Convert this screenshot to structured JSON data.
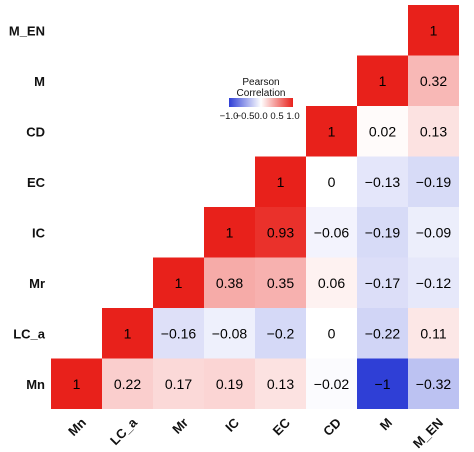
{
  "chart_data": {
    "type": "heatmap",
    "title": "",
    "variables": [
      "Mn",
      "LC_a",
      "Mr",
      "IC",
      "EC",
      "CD",
      "M",
      "M_EN"
    ],
    "x_labels": [
      "Mn",
      "LC_a",
      "Mr",
      "IC",
      "EC",
      "CD",
      "M",
      "M_EN"
    ],
    "y_labels_top_to_bottom": [
      "M_EN",
      "M",
      "CD",
      "EC",
      "IC",
      "Mr",
      "LC_a",
      "Mn"
    ],
    "layout": "lower-right triangle, diagonal from bottom-left to top-right",
    "cells": [
      {
        "x": "Mn",
        "y": "Mn",
        "value": 1,
        "label": "1"
      },
      {
        "x": "LC_a",
        "y": "Mn",
        "value": 0.22,
        "label": "0.22"
      },
      {
        "x": "Mr",
        "y": "Mn",
        "value": 0.17,
        "label": "0.17"
      },
      {
        "x": "IC",
        "y": "Mn",
        "value": 0.19,
        "label": "0.19"
      },
      {
        "x": "EC",
        "y": "Mn",
        "value": 0.13,
        "label": "0.13"
      },
      {
        "x": "CD",
        "y": "Mn",
        "value": -0.02,
        "label": "−0.02"
      },
      {
        "x": "M",
        "y": "Mn",
        "value": -1,
        "label": "−1"
      },
      {
        "x": "M_EN",
        "y": "Mn",
        "value": -0.32,
        "label": "−0.32"
      },
      {
        "x": "LC_a",
        "y": "LC_a",
        "value": 1,
        "label": "1"
      },
      {
        "x": "Mr",
        "y": "LC_a",
        "value": -0.16,
        "label": "−0.16"
      },
      {
        "x": "IC",
        "y": "LC_a",
        "value": -0.08,
        "label": "−0.08"
      },
      {
        "x": "EC",
        "y": "LC_a",
        "value": -0.2,
        "label": "−0.2"
      },
      {
        "x": "CD",
        "y": "LC_a",
        "value": 0,
        "label": "0"
      },
      {
        "x": "M",
        "y": "LC_a",
        "value": -0.22,
        "label": "−0.22"
      },
      {
        "x": "M_EN",
        "y": "LC_a",
        "value": 0.11,
        "label": "0.11"
      },
      {
        "x": "Mr",
        "y": "Mr",
        "value": 1,
        "label": "1"
      },
      {
        "x": "IC",
        "y": "Mr",
        "value": 0.38,
        "label": "0.38"
      },
      {
        "x": "EC",
        "y": "Mr",
        "value": 0.35,
        "label": "0.35"
      },
      {
        "x": "CD",
        "y": "Mr",
        "value": 0.06,
        "label": "0.06"
      },
      {
        "x": "M",
        "y": "Mr",
        "value": -0.17,
        "label": "−0.17"
      },
      {
        "x": "M_EN",
        "y": "Mr",
        "value": -0.12,
        "label": "−0.12"
      },
      {
        "x": "IC",
        "y": "IC",
        "value": 1,
        "label": "1"
      },
      {
        "x": "EC",
        "y": "IC",
        "value": 0.93,
        "label": "0.93"
      },
      {
        "x": "CD",
        "y": "IC",
        "value": -0.06,
        "label": "−0.06"
      },
      {
        "x": "M",
        "y": "IC",
        "value": -0.19,
        "label": "−0.19"
      },
      {
        "x": "M_EN",
        "y": "IC",
        "value": -0.09,
        "label": "−0.09"
      },
      {
        "x": "EC",
        "y": "EC",
        "value": 1,
        "label": "1"
      },
      {
        "x": "CD",
        "y": "EC",
        "value": 0,
        "label": "0"
      },
      {
        "x": "M",
        "y": "EC",
        "value": -0.13,
        "label": "−0.13"
      },
      {
        "x": "M_EN",
        "y": "EC",
        "value": -0.19,
        "label": "−0.19"
      },
      {
        "x": "CD",
        "y": "CD",
        "value": 1,
        "label": "1"
      },
      {
        "x": "M",
        "y": "CD",
        "value": 0.02,
        "label": "0.02"
      },
      {
        "x": "M_EN",
        "y": "CD",
        "value": 0.13,
        "label": "0.13"
      },
      {
        "x": "M",
        "y": "M",
        "value": 1,
        "label": "1"
      },
      {
        "x": "M_EN",
        "y": "M",
        "value": 0.32,
        "label": "0.32"
      },
      {
        "x": "M_EN",
        "y": "M_EN",
        "value": 1,
        "label": "1"
      }
    ],
    "color_scale": {
      "min": -1,
      "max": 1,
      "low_color": "#2f3fd6",
      "mid_color": "#ffffff",
      "high_color": "#e8211b"
    },
    "legend": {
      "title_line1": "Pearson",
      "title_line2": "Correlation",
      "tick_labels": [
        "−1.0",
        "−0.5",
        "0.0",
        "0.5",
        "1.0"
      ],
      "tick_values": [
        -1,
        -0.5,
        0,
        0.5,
        1
      ],
      "placement": "upper-left-center"
    }
  }
}
